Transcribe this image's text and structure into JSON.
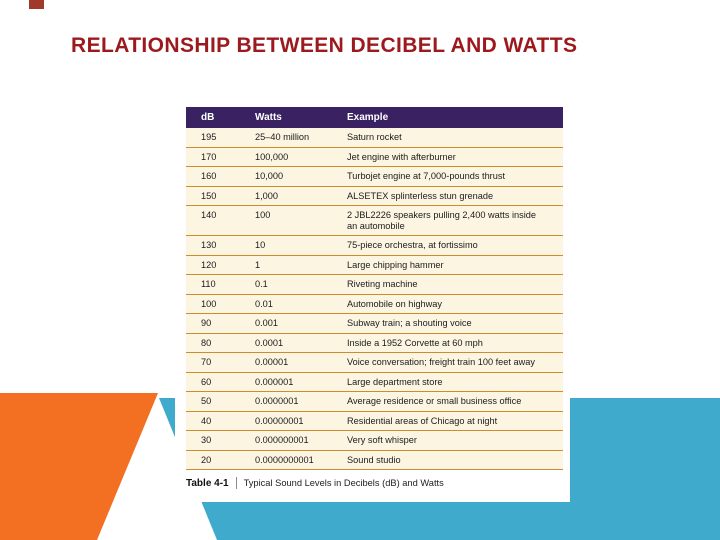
{
  "slide": {
    "title": "RELATIONSHIP BETWEEN DECIBEL AND WATTS"
  },
  "colors": {
    "title_color": "#9C1A1E",
    "corner_accent": "#A0392C",
    "header_bg": "#3A2262",
    "row_bg": "#FCF5E2",
    "row_line": "#CF8C2F",
    "orange_shape": "#F36F21",
    "teal_shape": "#3FAACB"
  },
  "table": {
    "headers": [
      "dB",
      "Watts",
      "Example"
    ],
    "rows": [
      {
        "db": "195",
        "watts": "25–40 million",
        "example": "Saturn rocket"
      },
      {
        "db": "170",
        "watts": "100,000",
        "example": "Jet engine with afterburner"
      },
      {
        "db": "160",
        "watts": "10,000",
        "example": "Turbojet engine at 7,000-pounds thrust"
      },
      {
        "db": "150",
        "watts": "1,000",
        "example": "ALSETEX splinterless stun grenade"
      },
      {
        "db": "140",
        "watts": "100",
        "example": "2 JBL2226 speakers pulling 2,400 watts inside\nan automobile"
      },
      {
        "db": "130",
        "watts": "10",
        "example": "75-piece orchestra, at fortissimo"
      },
      {
        "db": "120",
        "watts": "1",
        "example": "Large chipping hammer"
      },
      {
        "db": "110",
        "watts": "0.1",
        "example": "Riveting machine"
      },
      {
        "db": "100",
        "watts": "0.01",
        "example": "Automobile on highway"
      },
      {
        "db": "90",
        "watts": "0.001",
        "example": "Subway train; a shouting voice"
      },
      {
        "db": "80",
        "watts": "0.0001",
        "example": "Inside a 1952 Corvette at 60 mph"
      },
      {
        "db": "70",
        "watts": "0.00001",
        "example": "Voice conversation; freight train 100 feet away"
      },
      {
        "db": "60",
        "watts": "0.000001",
        "example": "Large department store"
      },
      {
        "db": "50",
        "watts": "0.0000001",
        "example": "Average residence or small business office"
      },
      {
        "db": "40",
        "watts": "0.00000001",
        "example": "Residential areas of Chicago at night"
      },
      {
        "db": "30",
        "watts": "0.000000001",
        "example": "Very soft whisper"
      },
      {
        "db": "20",
        "watts": "0.0000000001",
        "example": "Sound studio"
      }
    ],
    "caption_label": "Table 4-1",
    "caption_text": "Typical Sound Levels in Decibels (dB) and Watts"
  }
}
